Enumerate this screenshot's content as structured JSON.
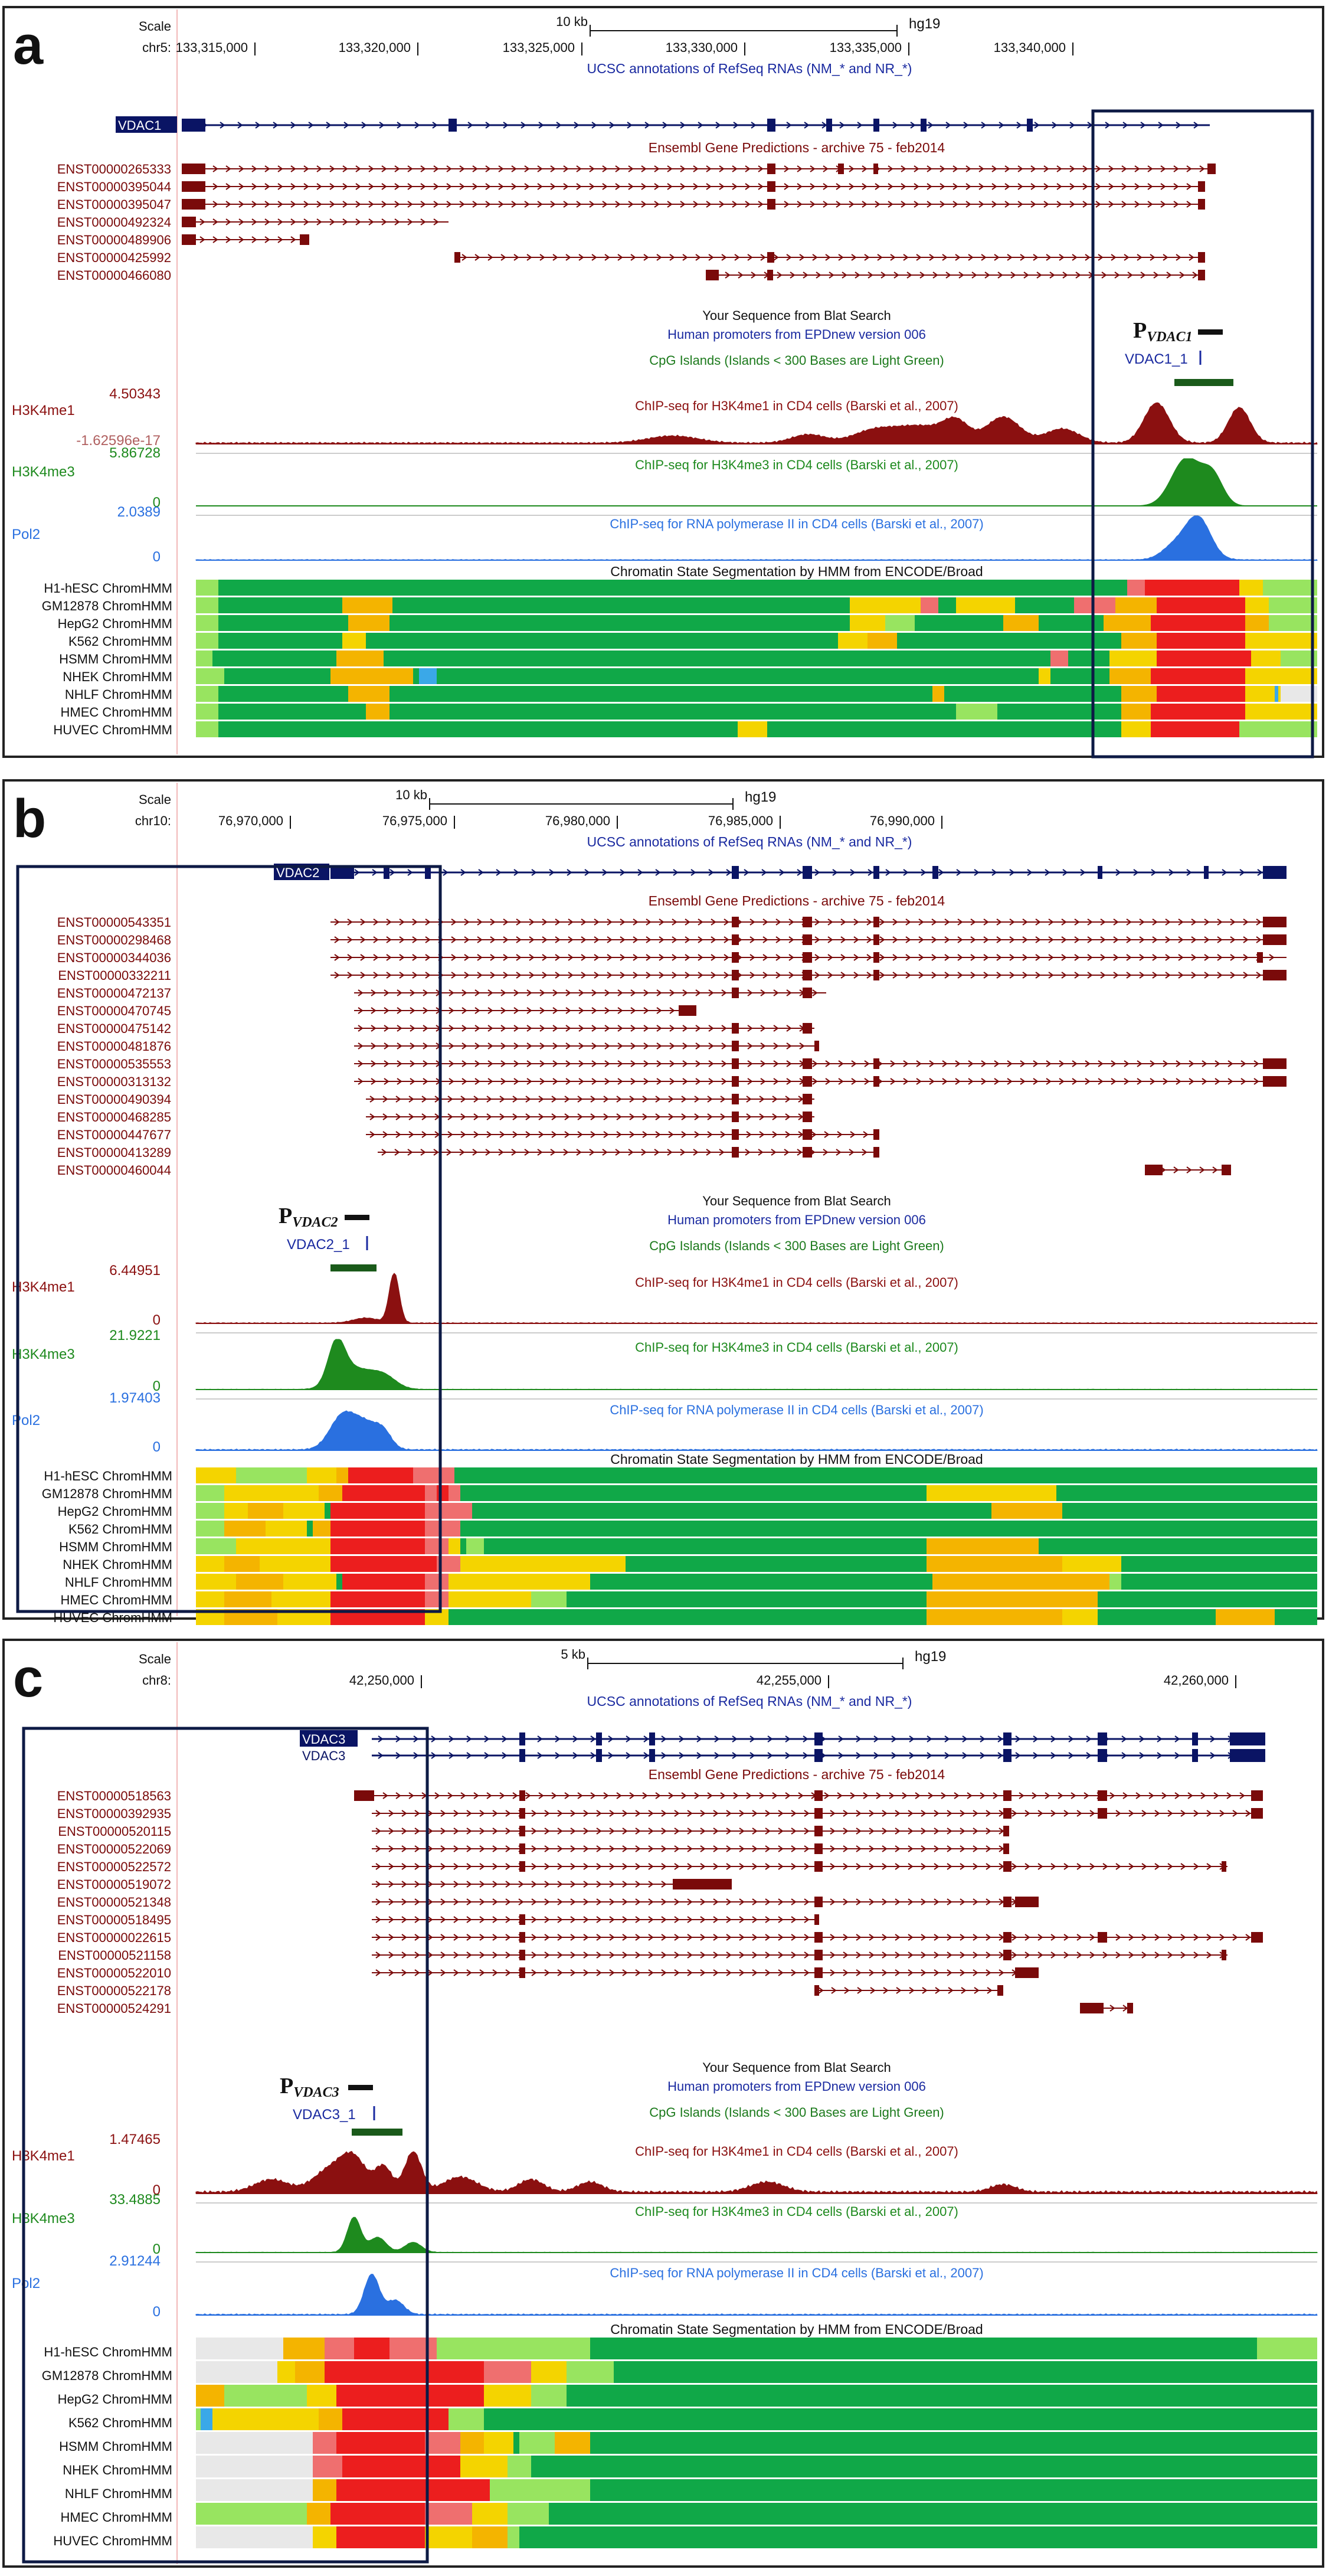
{
  "colors": {
    "refseq": "#0a1464",
    "ensembl": "#7a0a0a",
    "dark_text": "#111111",
    "blue_label": "#1a2aa0",
    "green_label": "#1c7a1c",
    "h3k4me1": "#8b1010",
    "h3k4me3": "#1e8a1e",
    "pol2": "#2a70e0",
    "state_green": "#10a848",
    "state_yellow": "#f4d400",
    "state_orange": "#f4b400",
    "state_red": "#ec1e1e",
    "state_pink": "#ef6f6f",
    "state_lightgreen": "#98e460",
    "state_gray": "#e8e8e8",
    "state_cyan": "#3aa8e8",
    "cpg_green": "#1a5a1a",
    "box": "#0d1a45"
  },
  "labels": {
    "scale": "Scale",
    "refseq_title": "UCSC annotations of RefSeq RNAs (NM_* and NR_*)",
    "ensembl_title": "Ensembl Gene Predictions - archive 75 - feb2014",
    "blat_title": "Your Sequence from Blat Search",
    "epd_title": "Human promoters from EPDnew version 006",
    "cpg_title": "CpG Islands (Islands < 300 Bases are Light Green)",
    "h3k4me1_title": "ChIP-seq for H3K4me1 in CD4 cells (Barski et al., 2007)",
    "h3k4me3_title": "ChIP-seq for H3K4me3 in CD4 cells (Barski et al., 2007)",
    "pol2_title": "ChIP-seq for RNA polymerase II in CD4 cells (Barski et al., 2007)",
    "chromhmm_title": "Chromatin State Segmentation by HMM from ENCODE/Broad",
    "h3k4me1": "H3K4me1",
    "h3k4me3": "H3K4me3",
    "pol2": "Pol2",
    "zero": "0",
    "assembly": "hg19",
    "cell_lines": [
      "H1-hESC ChromHMM",
      "GM12878 ChromHMM",
      "HepG2 ChromHMM",
      "K562 ChromHMM",
      "HSMM ChromHMM",
      "NHEK ChromHMM",
      "NHLF ChromHMM",
      "HMEC ChromHMM",
      "HUVEC ChromHMM"
    ],
    "promoter_letter": "P"
  },
  "panels": [
    {
      "letter": "a",
      "chrom": "chr5:",
      "scale_label": "10 kb",
      "ticks": [
        "133,315,000",
        "133,320,000",
        "133,325,000",
        "133,330,000",
        "133,335,000",
        "133,340,000"
      ],
      "refseq_genes": [
        "VDAC1"
      ],
      "ensembl": [
        "ENST00000265333",
        "ENST00000395044",
        "ENST00000395047",
        "ENST00000492324",
        "ENST00000489906",
        "ENST00000425992",
        "ENST00000466080"
      ],
      "promoter_sub": "VDAC1",
      "epd_name": "VDAC1_1",
      "h3k4me1_max": "4.50343",
      "h3k4me1_min": "-1.62596e-17",
      "h3k4me3_max": "5.86728",
      "pol2_max": "2.0389"
    },
    {
      "letter": "b",
      "chrom": "chr10:",
      "scale_label": "10 kb",
      "ticks": [
        "76,970,000",
        "76,975,000",
        "76,980,000",
        "76,985,000",
        "76,990,000"
      ],
      "refseq_genes": [
        "VDAC2"
      ],
      "ensembl": [
        "ENST00000543351",
        "ENST00000298468",
        "ENST00000344036",
        "ENST00000332211",
        "ENST00000472137",
        "ENST00000470745",
        "ENST00000475142",
        "ENST00000481876",
        "ENST00000535553",
        "ENST00000313132",
        "ENST00000490394",
        "ENST00000468285",
        "ENST00000447677",
        "ENST00000413289",
        "ENST00000460044"
      ],
      "promoter_sub": "VDAC2",
      "epd_name": "VDAC2_1",
      "h3k4me1_max": "6.44951",
      "h3k4me3_max": "21.9221",
      "pol2_max": "1.97403"
    },
    {
      "letter": "c",
      "chrom": "chr8:",
      "scale_label": "5 kb",
      "ticks": [
        "42,250,000",
        "42,255,000",
        "42,260,000"
      ],
      "refseq_genes": [
        "VDAC3",
        "VDAC3"
      ],
      "ensembl": [
        "ENST00000518563",
        "ENST00000392935",
        "ENST00000520115",
        "ENST00000522069",
        "ENST00000522572",
        "ENST00000519072",
        "ENST00000521348",
        "ENST00000518495",
        "ENST00000022615",
        "ENST00000521158",
        "ENST00000522010",
        "ENST00000522178",
        "ENST00000524291"
      ],
      "promoter_sub": "VDAC3",
      "epd_name": "VDAC3_1",
      "h3k4me1_max": "1.47465",
      "h3k4me3_max": "33.4885",
      "pol2_max": "2.91244"
    }
  ]
}
